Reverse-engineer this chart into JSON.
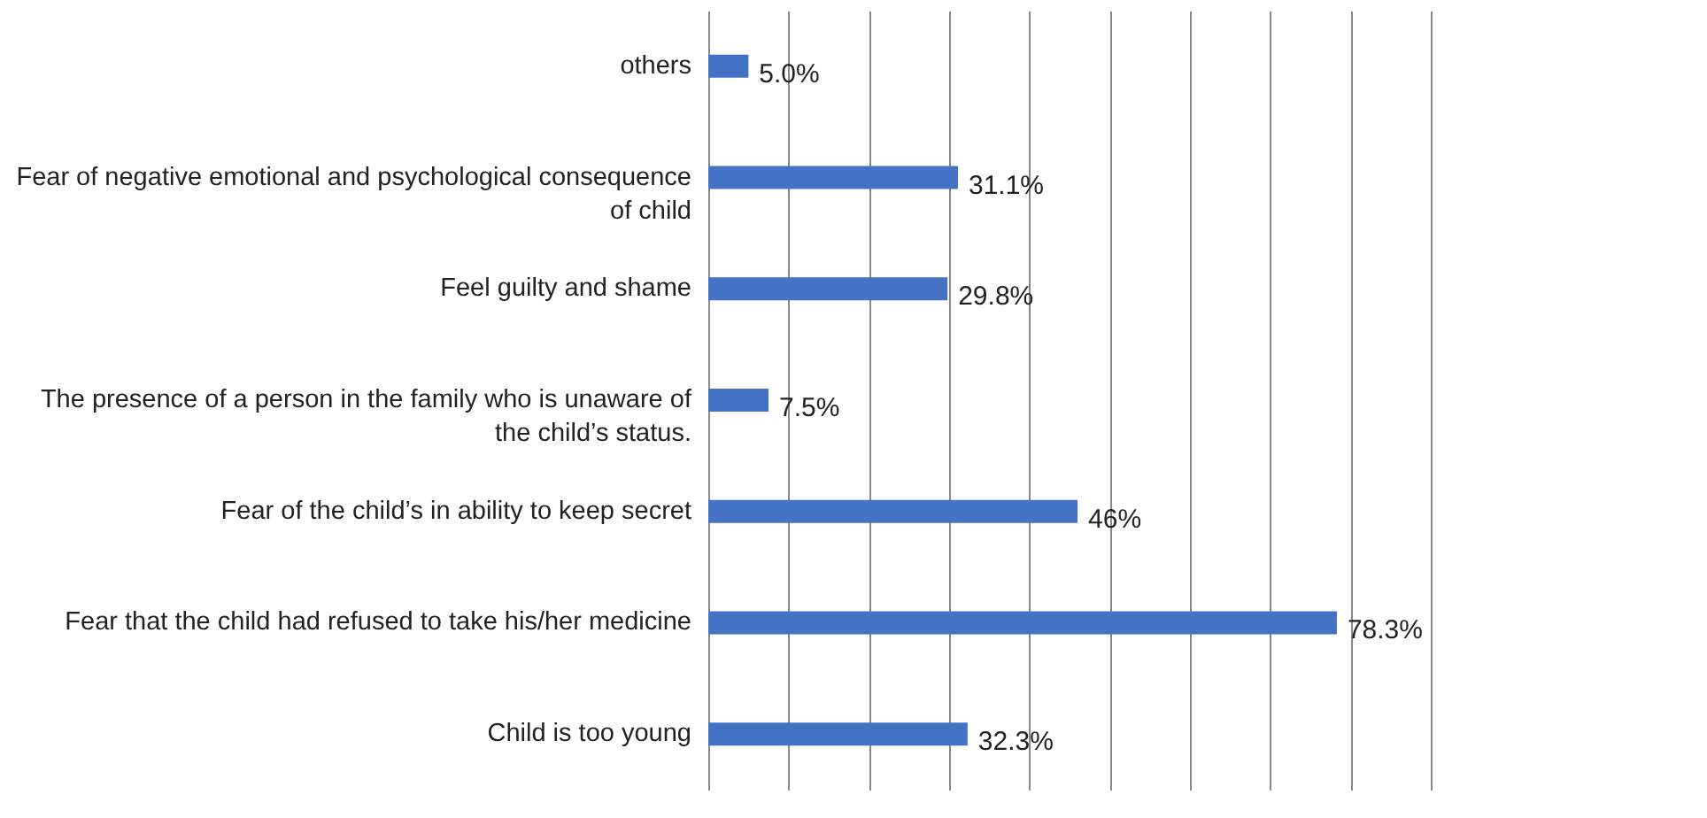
{
  "chart_data": {
    "type": "bar",
    "orientation": "horizontal",
    "categories": [
      "others",
      "Fear of negative emotional and psychological consequence of child",
      "Feel guilty and shame",
      "The presence of a person in the family who is unaware of the child’s status.",
      "Fear of the child’s in ability to keep secret",
      "Fear that the child had refused to take his/her medicine",
      "Child is too young"
    ],
    "values": [
      5.0,
      31.1,
      29.8,
      7.5,
      46,
      78.3,
      32.3
    ],
    "value_labels": [
      "5.0%",
      "31.1%",
      "29.8%",
      "7.5%",
      "46%",
      "78.3%",
      "32.3%"
    ],
    "color": "#4472c4",
    "xlim": [
      0,
      90
    ],
    "xticks": [
      {
        "value": 0,
        "label": null
      },
      {
        "value": 10,
        "label": null
      },
      {
        "value": 20,
        "label": null
      },
      {
        "value": 30,
        "label": null
      },
      {
        "value": 40,
        "label": null
      },
      {
        "value": 50,
        "label": null
      },
      {
        "value": 60,
        "label": null
      },
      {
        "value": 70,
        "label": null
      },
      {
        "value": 80,
        "label": null
      },
      {
        "value": 90,
        "label": null
      }
    ],
    "grid": "x",
    "tick_labels": "y"
  }
}
